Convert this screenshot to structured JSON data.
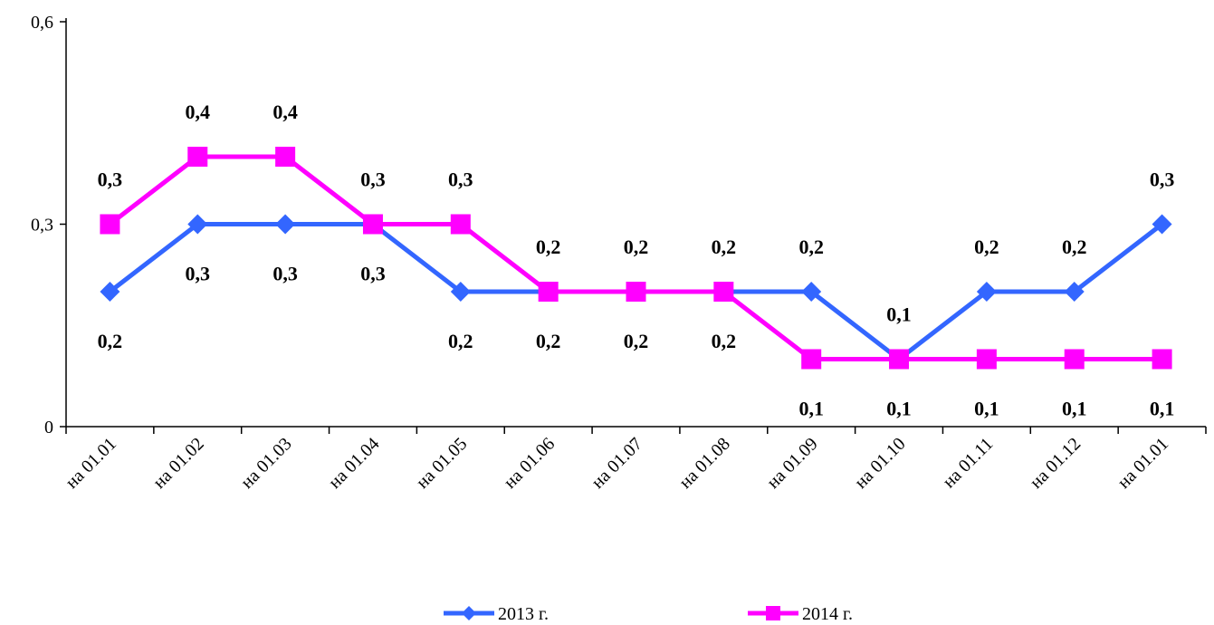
{
  "chart_data": {
    "type": "line",
    "categories": [
      "на 01.01",
      "на 01.02",
      "на 01.03",
      "на 01.04",
      "на 01.05",
      "на 01.06",
      "на 01.07",
      "на 01.08",
      "на 01.09",
      "на 01.10",
      "на 01.11",
      "на 01.12",
      "на 01.01"
    ],
    "series": [
      {
        "name": "2013 г.",
        "color": "#3366FF",
        "marker": "diamond",
        "values": [
          0.2,
          0.3,
          0.3,
          0.3,
          0.2,
          0.2,
          0.2,
          0.2,
          0.2,
          0.1,
          0.2,
          0.2,
          0.3
        ],
        "labels": [
          "0,2",
          "0,3",
          "0,3",
          "0,3",
          "0,2",
          "0,2",
          "0,2",
          "0,2",
          "0,2",
          "0,1",
          "0,2",
          "0,2",
          "0,3"
        ],
        "label_pos": [
          "below",
          "below",
          "below",
          "below",
          "below",
          "below",
          "below",
          "below",
          "above",
          "above",
          "above",
          "above",
          "above"
        ]
      },
      {
        "name": "2014 г.",
        "color": "#FF00FF",
        "marker": "square",
        "values": [
          0.3,
          0.4,
          0.4,
          0.3,
          0.3,
          0.2,
          0.2,
          0.2,
          0.1,
          0.1,
          0.1,
          0.1,
          0.1
        ],
        "labels": [
          "0,3",
          "0,4",
          "0,4",
          "0,3",
          "0,3",
          "0,2",
          "0,2",
          "0,2",
          "0,1",
          "0,1",
          "0,1",
          "0,1",
          "0,1"
        ],
        "label_pos": [
          "above",
          "above",
          "above",
          "above",
          "above",
          "above",
          "above",
          "above",
          "below",
          "below",
          "below",
          "below",
          "below"
        ]
      }
    ],
    "ylim": [
      0,
      0.6
    ],
    "yticks": [
      0,
      0.3,
      0.6
    ],
    "ytick_labels": [
      "0",
      "0,3",
      "0,6"
    ],
    "grid": false,
    "legend": "bottom"
  }
}
